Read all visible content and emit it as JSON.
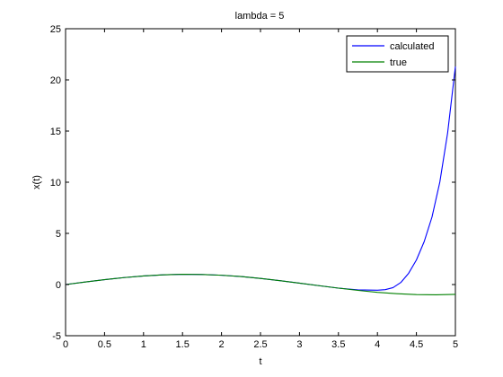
{
  "chart_data": {
    "type": "line",
    "title": "lambda = 5",
    "xlabel": "t",
    "ylabel": "x(t)",
    "xlim": [
      0,
      5
    ],
    "ylim": [
      -5,
      25
    ],
    "xticks": [
      0,
      0.5,
      1,
      1.5,
      2,
      2.5,
      3,
      3.5,
      4,
      4.5,
      5
    ],
    "xtick_labels": [
      "0",
      "0.5",
      "1",
      "1.5",
      "2",
      "2.5",
      "3",
      "3.5",
      "4",
      "4.5",
      "5"
    ],
    "yticks": [
      -5,
      0,
      5,
      10,
      15,
      20,
      25
    ],
    "ytick_labels": [
      "-5",
      "0",
      "5",
      "10",
      "15",
      "20",
      "25"
    ],
    "grid": false,
    "legend_position": "top-right",
    "series": [
      {
        "name": "calculated",
        "color": "#0000ff",
        "x": [
          0,
          0.25,
          0.5,
          0.75,
          1,
          1.25,
          1.5,
          1.75,
          2,
          2.25,
          2.5,
          2.75,
          3,
          3.25,
          3.5,
          3.75,
          4,
          4.1,
          4.2,
          4.3,
          4.4,
          4.5,
          4.6,
          4.7,
          4.8,
          4.9,
          5
        ],
        "y": [
          0,
          0.25,
          0.48,
          0.68,
          0.84,
          0.95,
          1.0,
          0.98,
          0.91,
          0.78,
          0.6,
          0.38,
          0.14,
          -0.11,
          -0.35,
          -0.52,
          -0.55,
          -0.5,
          -0.3,
          0.2,
          1.1,
          2.4,
          4.2,
          6.6,
          10.0,
          14.8,
          21.3
        ]
      },
      {
        "name": "true",
        "color": "#008000",
        "x": [
          0,
          0.25,
          0.5,
          0.75,
          1,
          1.25,
          1.5,
          1.75,
          2,
          2.25,
          2.5,
          2.75,
          3,
          3.25,
          3.5,
          3.75,
          4,
          4.25,
          4.5,
          4.75,
          5
        ],
        "y": [
          0,
          0.25,
          0.48,
          0.68,
          0.84,
          0.95,
          1.0,
          0.98,
          0.91,
          0.78,
          0.6,
          0.38,
          0.14,
          -0.11,
          -0.35,
          -0.57,
          -0.76,
          -0.89,
          -0.98,
          -1.0,
          -0.96
        ]
      }
    ]
  }
}
